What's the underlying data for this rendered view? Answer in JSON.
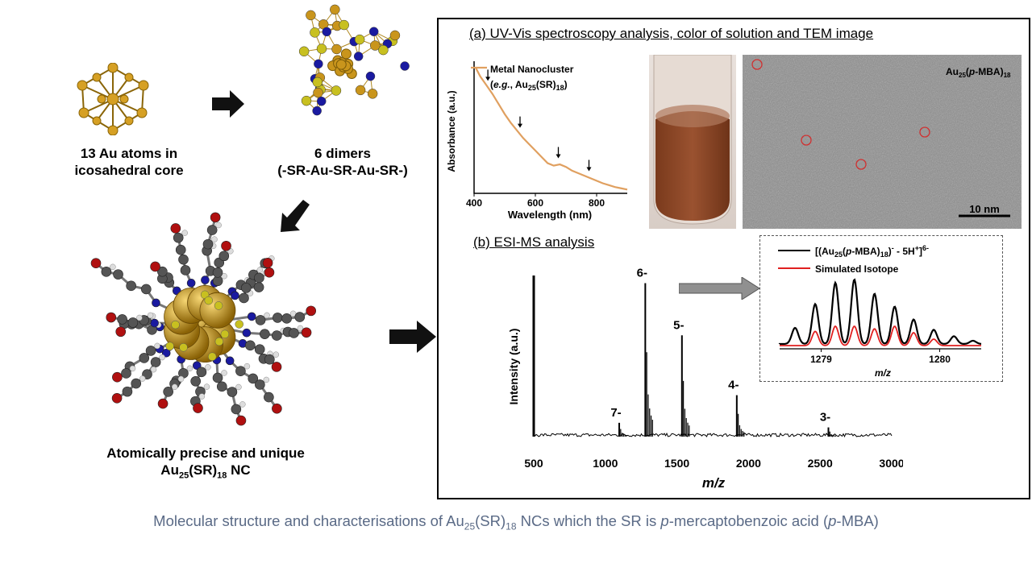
{
  "left": {
    "core_caption_line1": "13 Au atoms in",
    "core_caption_line2": "icosahedral core",
    "dimer_caption_line1": "6 dimers",
    "dimer_caption_line2": "(-SR-Au-SR-Au-SR-)",
    "nc_caption_line1": "Atomically precise and unique",
    "nc_caption_line2_prefix": "Au",
    "nc_caption_sub1": "25",
    "nc_caption_mid": "(SR)",
    "nc_caption_sub2": "18",
    "nc_caption_suffix": " NC"
  },
  "panel_a": {
    "title": "(a) UV-Vis spectroscopy analysis,  color of solution and TEM image",
    "tem_label_prefix": "Au",
    "tem_label_sub1": "25",
    "tem_label_mid1": "(",
    "tem_label_italic": "p",
    "tem_label_mid2": "-MBA)",
    "tem_label_sub2": "18",
    "scale_bar": "10 nm"
  },
  "panel_b": {
    "title": "(b) ESI-MS  analysis"
  },
  "caption": {
    "text1": "Molecular structure and characterisations of Au",
    "sub1": "25",
    "text2": "(SR)",
    "sub2": "18",
    "text3": " NCs which the SR is ",
    "italic1": "p",
    "text4": "-mercaptobenzoic acid (",
    "italic2": "p",
    "text5": "-MBA)"
  },
  "colors": {
    "gold": "#c9951c",
    "sulfur": "#c8c020",
    "nitrogen": "#1a1aa0",
    "oxygen": "#b01010",
    "carbon": "#555555",
    "hydrogen": "#dddddd",
    "uv_curve": "#e0a060",
    "ms_black": "#000000",
    "ms_red": "#e02020",
    "caption_text": "#5a6a86"
  },
  "chart_data": [
    {
      "type": "line",
      "title": "",
      "xlabel": "Wavelength (nm)",
      "ylabel": "Absorbance (a.u.)",
      "xlim": [
        400,
        900
      ],
      "xticks": [
        "400",
        "600",
        "800"
      ],
      "legend_line1": "Metal Nanocluster",
      "legend_line2_prefix": "(",
      "legend_line2_italic": "e.g.",
      "legend_line2_mid": ", Au",
      "legend_line2_sub1": "25",
      "legend_line2_mid2": "(SR)",
      "legend_line2_sub2": "18",
      "legend_line2_suffix": ")",
      "series": [
        {
          "x": [
            405,
            420,
            440,
            460,
            480,
            500,
            520,
            540,
            560,
            580,
            600,
            620,
            640,
            660,
            680,
            700,
            720,
            740,
            760,
            780,
            800,
            820,
            840,
            860,
            880,
            900
          ],
          "y": [
            1.0,
            0.93,
            0.86,
            0.79,
            0.71,
            0.63,
            0.56,
            0.5,
            0.44,
            0.39,
            0.34,
            0.29,
            0.24,
            0.22,
            0.23,
            0.21,
            0.18,
            0.16,
            0.14,
            0.12,
            0.1,
            0.08,
            0.065,
            0.05,
            0.04,
            0.03
          ]
        }
      ],
      "peak_markers_nm": [
        445,
        550,
        675,
        775
      ],
      "ylim": [
        0,
        1.05
      ]
    },
    {
      "type": "bar",
      "title": "",
      "xlabel": "m/z",
      "ylabel": "Intensity (a.u.)",
      "xlim": [
        500,
        3000
      ],
      "xticks": [
        "500",
        "1000",
        "1500",
        "2000",
        "2500",
        "3000"
      ],
      "charge_labels": [
        "7-",
        "6-",
        "5-",
        "4-",
        "3-"
      ],
      "peaks_mz": [
        1097,
        1279,
        1535,
        1918,
        2558
      ],
      "peaks_intensity": [
        0.09,
        1.0,
        0.66,
        0.27,
        0.06
      ],
      "ylim": [
        0,
        1.05
      ]
    },
    {
      "type": "line",
      "title": "",
      "xlabel": "m/z",
      "xticks": [
        "1279",
        "1280"
      ],
      "xlim": [
        1278.65,
        1280.35
      ],
      "series": [
        {
          "name": "[(Au25(p-MBA)18)- - 5H+]6-",
          "color": "#000000",
          "x": [
            1278.78,
            1278.95,
            1279.12,
            1279.28,
            1279.45,
            1279.62,
            1279.78,
            1279.95,
            1280.12,
            1280.28
          ],
          "y": [
            0.25,
            0.62,
            0.95,
            1.0,
            0.78,
            0.58,
            0.38,
            0.22,
            0.12,
            0.05
          ]
        },
        {
          "name": "Simulated Isotope",
          "color": "#e02020",
          "x": [
            1278.95,
            1279.12,
            1279.28,
            1279.45,
            1279.62,
            1279.78,
            1279.95
          ],
          "y": [
            0.22,
            0.3,
            0.3,
            0.26,
            0.3,
            0.2,
            0.1
          ]
        }
      ],
      "legend_black_prefix": "[(Au",
      "legend_black_sub1": "25",
      "legend_black_mid1": "(",
      "legend_black_italic": "p",
      "legend_black_mid2": "-MBA)",
      "legend_black_sub2": "18",
      "legend_black_mid3": ")",
      "legend_black_sup1": "-",
      "legend_black_mid4": " - 5H",
      "legend_black_sup2": "+",
      "legend_black_mid5": "]",
      "legend_black_sup3": "6-",
      "legend_red": "Simulated Isotope"
    }
  ]
}
